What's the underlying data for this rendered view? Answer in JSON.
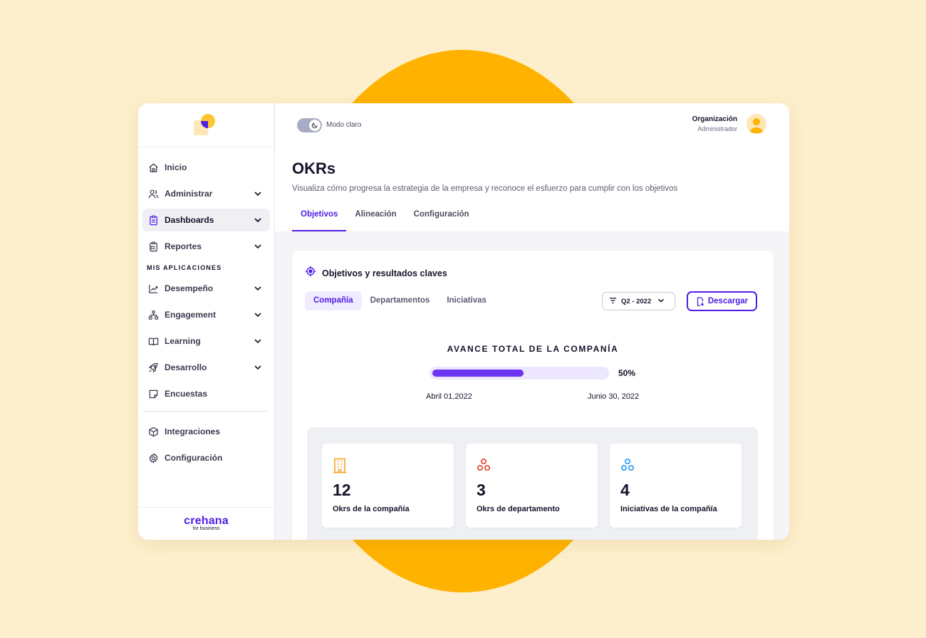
{
  "topbar": {
    "toggle_label": "Modo claro",
    "org_name": "Organización",
    "role": "Administrador"
  },
  "sidebar": {
    "items": [
      {
        "label": "Inicio",
        "icon": "home-icon"
      },
      {
        "label": "Administrar",
        "icon": "users-icon"
      },
      {
        "label": "Dashboards",
        "icon": "clipboard-icon"
      },
      {
        "label": "Reportes",
        "icon": "clipboard-list-icon"
      }
    ],
    "section_label": "MIS APLICACIONES",
    "apps": [
      {
        "label": "Desempeño",
        "icon": "chart-up-icon"
      },
      {
        "label": "Engagement",
        "icon": "hierarchy-icon"
      },
      {
        "label": "Learning",
        "icon": "book-icon"
      },
      {
        "label": "Desarrollo",
        "icon": "rocket-icon"
      },
      {
        "label": "Encuestas",
        "icon": "note-icon"
      }
    ],
    "bottom": [
      {
        "label": "Integraciones",
        "icon": "cube-icon"
      },
      {
        "label": "Configuración",
        "icon": "gear-icon"
      }
    ],
    "brand": "crehana",
    "brand_sub": "for business"
  },
  "page": {
    "title": "OKRs",
    "subtitle": "Visualiza cómo progresa la estrategia de la empresa y reconoce el esfuerzo para cumplir con los objetivos",
    "tabs": [
      "Objetivos",
      "Alineación",
      "Configuración"
    ],
    "active_tab": "Objetivos"
  },
  "card": {
    "title": "Objetivos y resultados claves",
    "subtabs": [
      "Compañía",
      "Departamentos",
      "Iniciativas"
    ],
    "active_subtab": "Compañía",
    "filter_label": "Q2 - 2022",
    "download_label": "Descargar",
    "progress_title": "AVANCE TOTAL DE LA COMPANÍA",
    "progress_value": 0.5,
    "progress_label": "50%",
    "date_start": "Abril 01,2022",
    "date_end": "Junio 30, 2022",
    "stats": [
      {
        "value": "12",
        "label": "Okrs de la compañía",
        "icon": "building-icon",
        "color": "#f5a623"
      },
      {
        "value": "3",
        "label": "Okrs de departamento",
        "icon": "circles-icon",
        "color": "#e0482b"
      },
      {
        "value": "4",
        "label": "Iniciativas de la compañía",
        "icon": "circles-icon",
        "color": "#2e9cf2"
      }
    ]
  },
  "colors": {
    "accent": "#4f1ee5",
    "progress_fill": "#6c35f2",
    "background": "#fdefcb",
    "circle": "#ffb300"
  }
}
